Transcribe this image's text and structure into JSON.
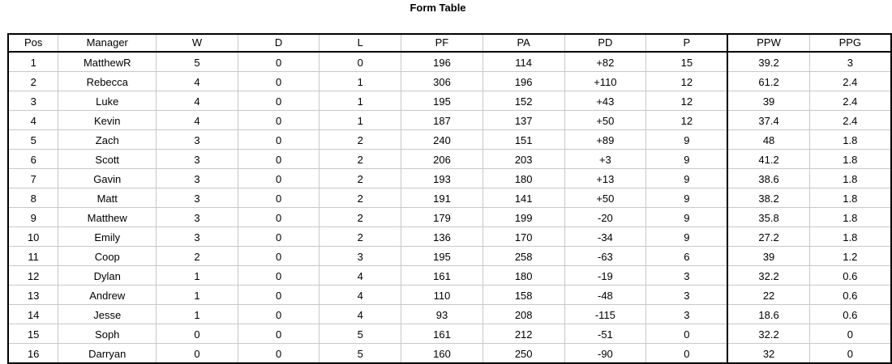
{
  "title": "Form Table",
  "columns": [
    "Pos",
    "Manager",
    "W",
    "D",
    "L",
    "PF",
    "PA",
    "PD",
    "P",
    "PPW",
    "PPG"
  ],
  "rows": [
    [
      "1",
      "MatthewR",
      "5",
      "0",
      "0",
      "196",
      "114",
      "+82",
      "15",
      "39.2",
      "3"
    ],
    [
      "2",
      "Rebecca",
      "4",
      "0",
      "1",
      "306",
      "196",
      "+110",
      "12",
      "61.2",
      "2.4"
    ],
    [
      "3",
      "Luke",
      "4",
      "0",
      "1",
      "195",
      "152",
      "+43",
      "12",
      "39",
      "2.4"
    ],
    [
      "4",
      "Kevin",
      "4",
      "0",
      "1",
      "187",
      "137",
      "+50",
      "12",
      "37.4",
      "2.4"
    ],
    [
      "5",
      "Zach",
      "3",
      "0",
      "2",
      "240",
      "151",
      "+89",
      "9",
      "48",
      "1.8"
    ],
    [
      "6",
      "Scott",
      "3",
      "0",
      "2",
      "206",
      "203",
      "+3",
      "9",
      "41.2",
      "1.8"
    ],
    [
      "7",
      "Gavin",
      "3",
      "0",
      "2",
      "193",
      "180",
      "+13",
      "9",
      "38.6",
      "1.8"
    ],
    [
      "8",
      "Matt",
      "3",
      "0",
      "2",
      "191",
      "141",
      "+50",
      "9",
      "38.2",
      "1.8"
    ],
    [
      "9",
      "Matthew",
      "3",
      "0",
      "2",
      "179",
      "199",
      "-20",
      "9",
      "35.8",
      "1.8"
    ],
    [
      "10",
      "Emily",
      "3",
      "0",
      "2",
      "136",
      "170",
      "-34",
      "9",
      "27.2",
      "1.8"
    ],
    [
      "11",
      "Coop",
      "2",
      "0",
      "3",
      "195",
      "258",
      "-63",
      "6",
      "39",
      "1.2"
    ],
    [
      "12",
      "Dylan",
      "1",
      "0",
      "4",
      "161",
      "180",
      "-19",
      "3",
      "32.2",
      "0.6"
    ],
    [
      "13",
      "Andrew",
      "1",
      "0",
      "4",
      "110",
      "158",
      "-48",
      "3",
      "22",
      "0.6"
    ],
    [
      "14",
      "Jesse",
      "1",
      "0",
      "4",
      "93",
      "208",
      "-115",
      "3",
      "18.6",
      "0.6"
    ],
    [
      "15",
      "Soph",
      "0",
      "0",
      "5",
      "161",
      "212",
      "-51",
      "0",
      "32.2",
      "0"
    ],
    [
      "16",
      "Darryan",
      "0",
      "0",
      "5",
      "160",
      "250",
      "-90",
      "0",
      "32",
      "0"
    ]
  ]
}
